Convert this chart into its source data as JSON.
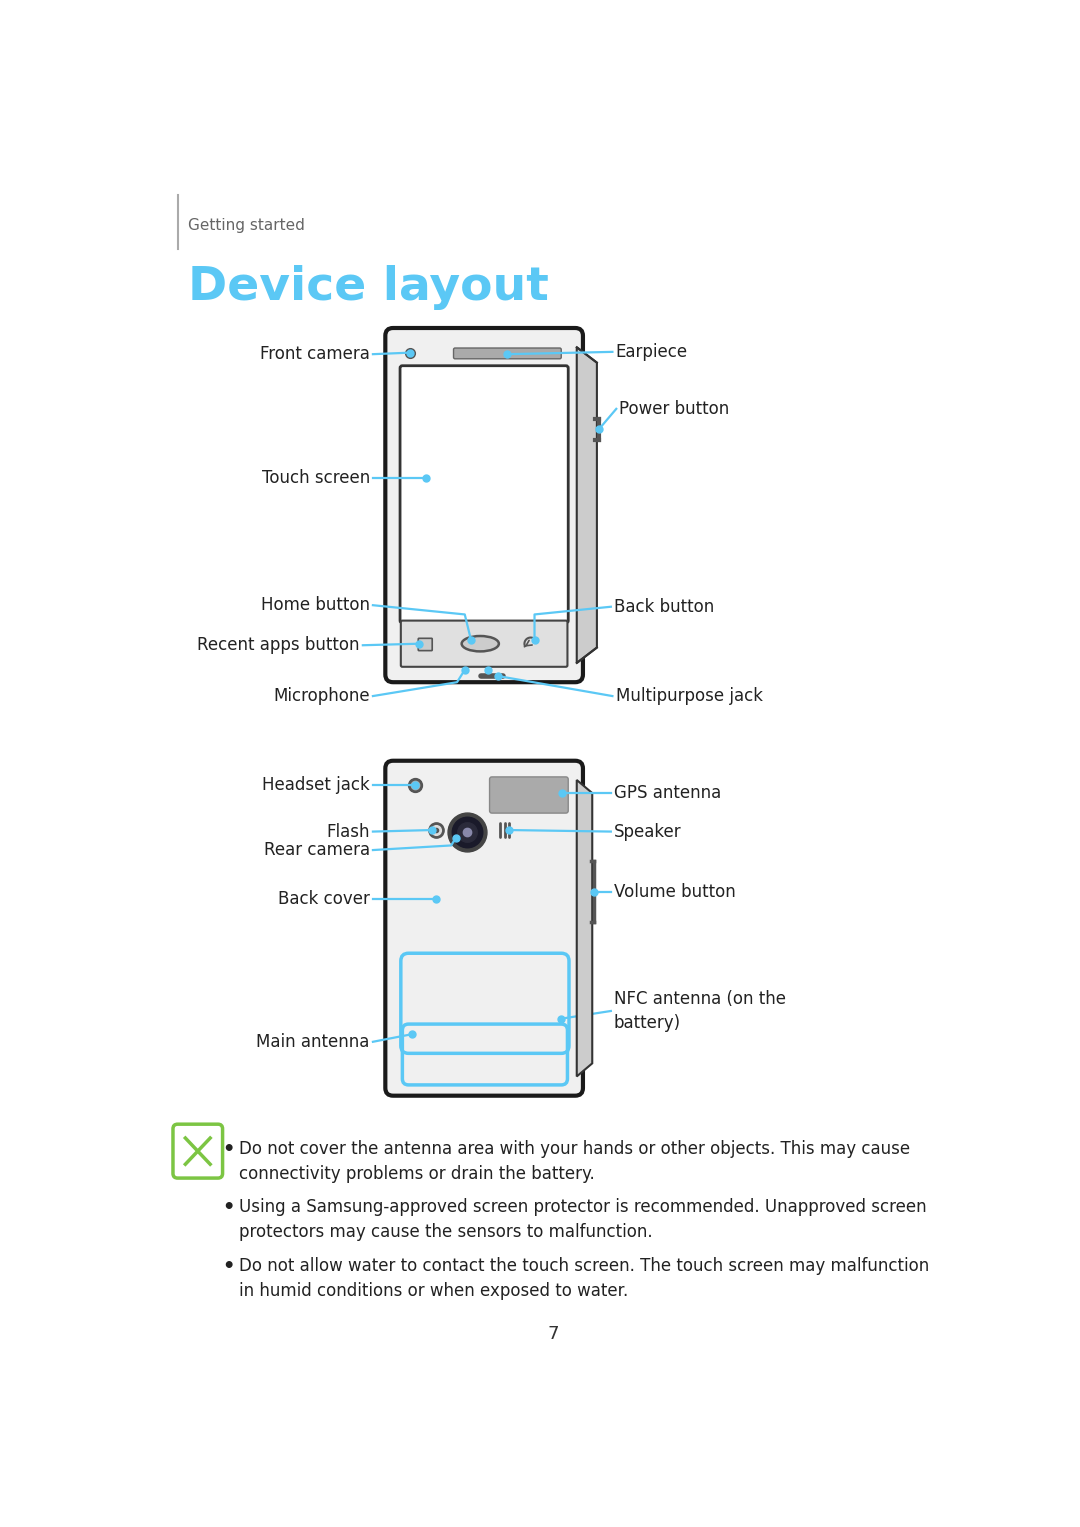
{
  "bg_color": "#ffffff",
  "page_header": "Getting started",
  "title": "Device layout",
  "title_color": "#5bc8f5",
  "header_color": "#555555",
  "label_color": "#222222",
  "line_color": "#5bc8f5",
  "dot_color": "#5bc8f5",
  "page_number": "7",
  "note_icon_color": "#7cc543",
  "notes": [
    "Do not cover the antenna area with your hands or other objects. This may cause\nconnectivity problems or drain the battery.",
    "Using a Samsung-approved screen protector is recommended. Unapproved screen\nprotectors may cause the sensors to malfunction.",
    "Do not allow water to contact the touch screen. The touch screen may malfunction\nin humid conditions or when exposed to water."
  ]
}
